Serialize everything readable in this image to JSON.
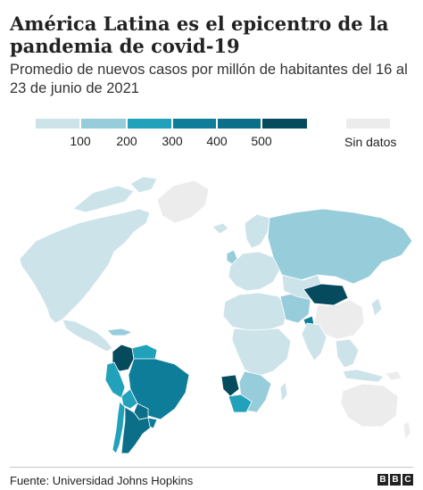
{
  "title": "América Latina es el epicentro de la pandemia de covid-19",
  "subtitle": "Promedio de nuevos casos por millón de habitantes del 16 al 23 de junio de 2021",
  "legend": {
    "ticks": [
      "100",
      "200",
      "300",
      "400",
      "500"
    ],
    "colors": [
      "#cde3ea",
      "#97cddb",
      "#21a2ba",
      "#0e7d99",
      "#0c6f8a",
      "#064a5e"
    ],
    "no_data_label": "Sin datos",
    "no_data_color": "#ececec"
  },
  "map_data": {
    "type": "choropleth",
    "highlighted_regions": [
      {
        "region": "Norteamérica",
        "level": "0-100"
      },
      {
        "region": "Colombia",
        "level": "500+"
      },
      {
        "region": "Brasil",
        "level": "300-400"
      },
      {
        "region": "Argentina",
        "level": "400-500"
      },
      {
        "region": "Paraguay",
        "level": "400-500"
      },
      {
        "region": "Rusia",
        "level": "100-200"
      },
      {
        "region": "Mongolia",
        "level": "500+"
      },
      {
        "region": "Namibia",
        "level": "500+"
      },
      {
        "region": "Sudáfrica",
        "level": "300-400"
      }
    ]
  },
  "source": "Fuente: Universidad Johns Hopkins",
  "logo": {
    "letters": [
      "B",
      "B",
      "C"
    ]
  }
}
